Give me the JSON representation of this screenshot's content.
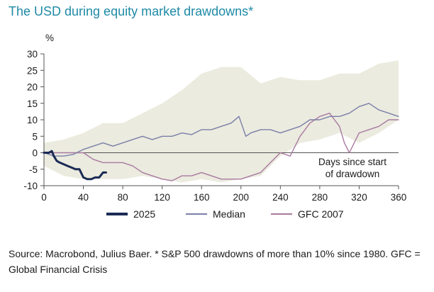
{
  "title": "The USD during equity market drawdowns*",
  "source": "Source: Macrobond, Julius Baer. * S&P 500 drawdowns of more than 10% since 1980. GFC = Global Financial Crisis",
  "chart_data": {
    "type": "line",
    "title": "The USD during equity market drawdowns*",
    "y_unit": "%",
    "xlim": [
      0,
      360
    ],
    "ylim": [
      -10,
      30
    ],
    "x_ticks": [
      0,
      40,
      80,
      120,
      160,
      200,
      240,
      280,
      320,
      360
    ],
    "y_ticks": [
      30,
      25,
      20,
      15,
      10,
      5,
      0,
      -5,
      -10
    ],
    "annotation": [
      "Days since start",
      "of drawdown"
    ],
    "band": {
      "x": [
        0,
        20,
        40,
        60,
        80,
        100,
        120,
        140,
        160,
        180,
        200,
        220,
        240,
        260,
        280,
        300,
        320,
        340,
        360
      ],
      "upper": [
        3,
        4,
        6,
        9,
        9,
        12,
        15,
        19,
        24,
        26,
        26,
        21,
        23,
        22,
        22,
        24,
        24,
        27,
        28
      ],
      "lower": [
        -4,
        -7,
        -8,
        -8,
        -8,
        -7,
        -8,
        -9,
        -8,
        -9,
        -8,
        -7,
        -1,
        3,
        4,
        6,
        3,
        6,
        10
      ]
    },
    "series": [
      {
        "name": "2025",
        "color": "#1a2b55",
        "x": [
          0,
          5,
          8,
          10,
          13,
          16,
          20,
          24,
          28,
          32,
          36,
          40,
          44,
          48,
          52,
          56,
          60,
          63
        ],
        "y": [
          0,
          0,
          0.5,
          -1,
          -2.5,
          -3,
          -3.5,
          -4,
          -4.5,
          -5,
          -5,
          -7.5,
          -8,
          -8,
          -7.5,
          -7.5,
          -6,
          -6
        ]
      },
      {
        "name": "Median",
        "color": "#7a7fa8",
        "x": [
          0,
          10,
          20,
          30,
          40,
          50,
          60,
          70,
          80,
          90,
          100,
          110,
          120,
          130,
          140,
          150,
          160,
          170,
          180,
          190,
          198,
          205,
          210,
          220,
          230,
          240,
          250,
          260,
          270,
          280,
          290,
          300,
          310,
          320,
          330,
          340,
          350,
          360
        ],
        "y": [
          0,
          -1,
          -1,
          -0.5,
          1,
          2,
          3,
          2,
          3,
          4,
          5,
          4,
          5,
          5,
          6,
          5.5,
          7,
          7,
          8,
          9,
          11,
          5,
          6,
          7,
          7,
          6,
          7,
          8,
          10,
          10,
          11,
          11,
          12,
          14,
          15,
          13,
          12,
          11
        ]
      },
      {
        "name": "GFC 2007",
        "color": "#a87aa0",
        "x": [
          0,
          10,
          20,
          30,
          40,
          50,
          60,
          70,
          80,
          90,
          100,
          110,
          120,
          130,
          140,
          150,
          160,
          170,
          180,
          190,
          200,
          210,
          220,
          230,
          240,
          250,
          260,
          270,
          280,
          290,
          295,
          300,
          305,
          310,
          320,
          330,
          340,
          350,
          360
        ],
        "y": [
          0,
          0,
          0,
          0,
          0,
          -2,
          -3,
          -3,
          -3,
          -4,
          -6,
          -7,
          -8,
          -8.5,
          -7,
          -7,
          -6,
          -7,
          -8,
          -8,
          -8,
          -7,
          -6,
          -3,
          0,
          -1,
          5,
          9,
          11,
          12,
          10,
          8,
          3,
          0,
          6,
          7,
          8,
          10,
          10
        ]
      }
    ]
  }
}
